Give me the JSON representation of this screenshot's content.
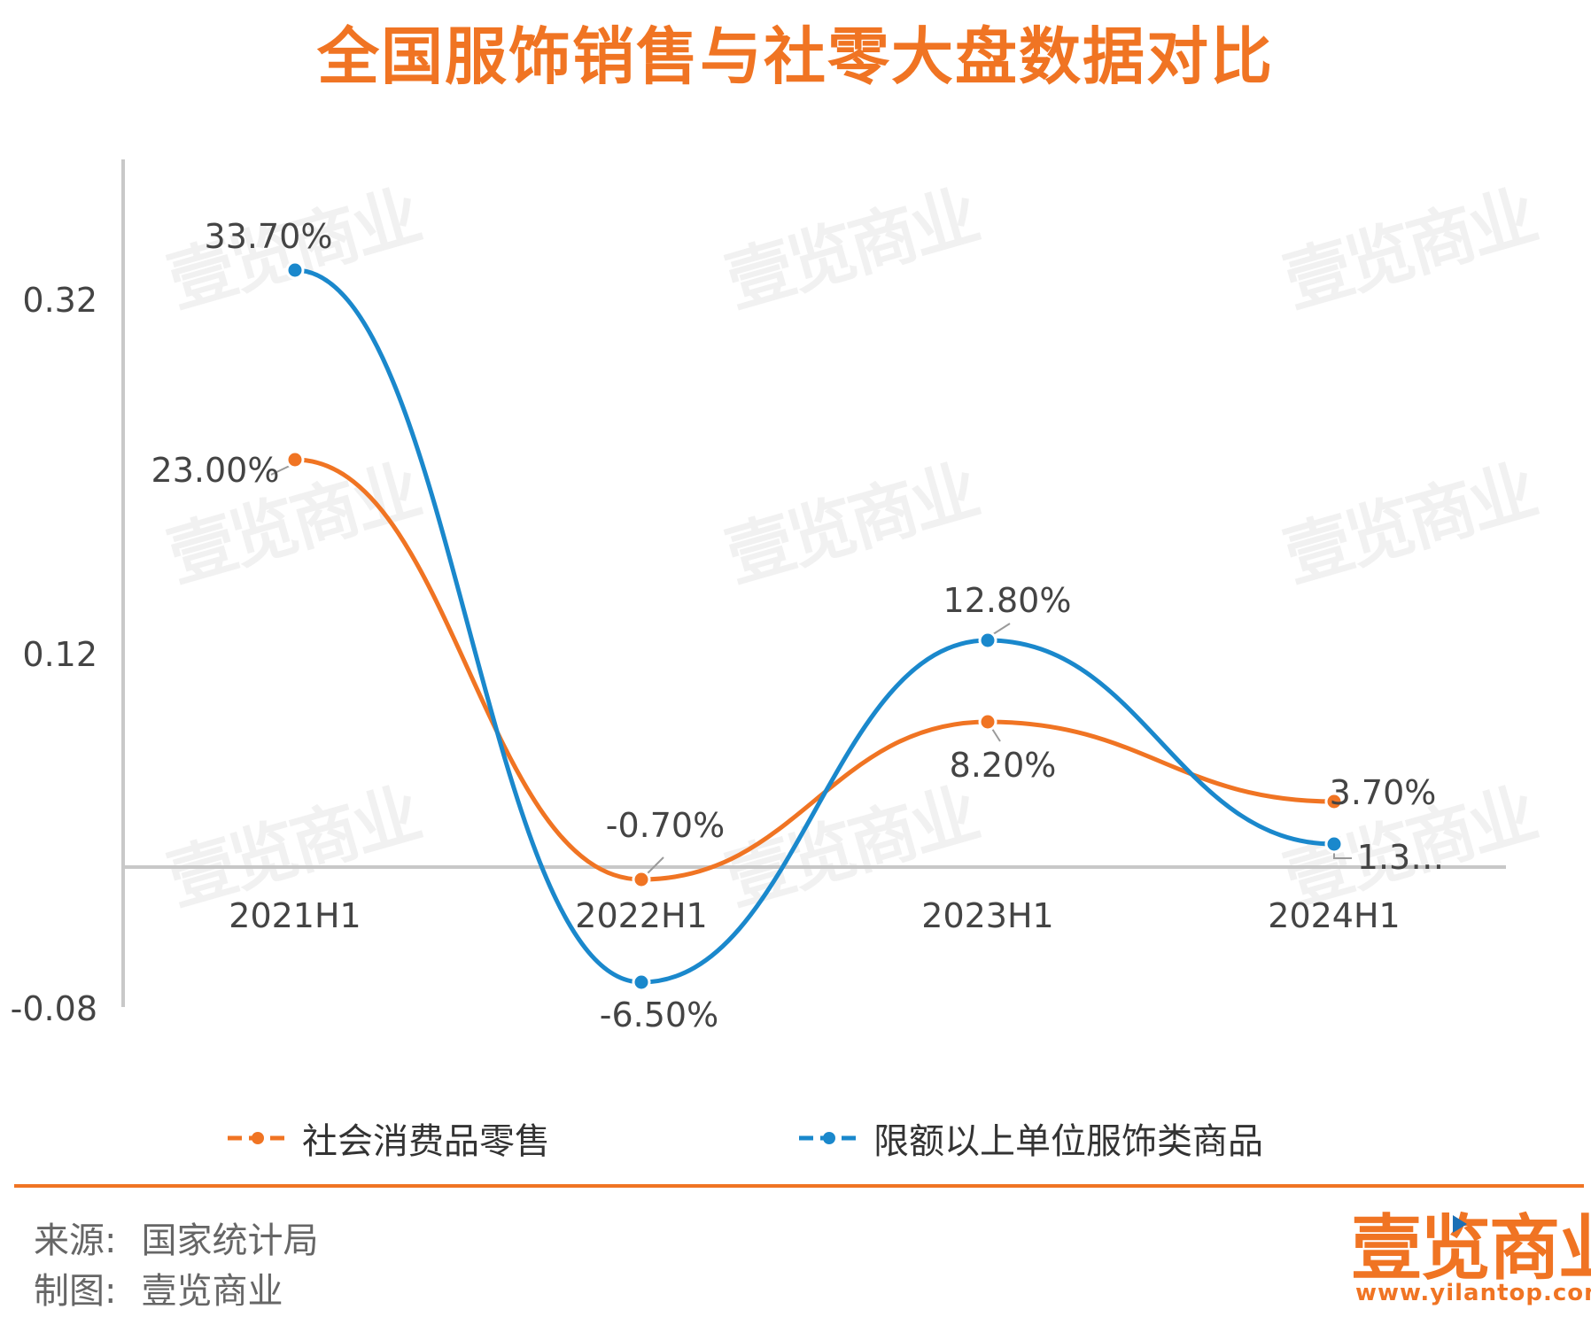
{
  "title": "全国服饰销售与社零大盘数据对比",
  "chart_data": {
    "type": "line",
    "categories": [
      "2021H1",
      "2022H1",
      "2023H1",
      "2024H1"
    ],
    "series": [
      {
        "name": "社会消费品零售",
        "color": "#f07423",
        "values": [
          0.23,
          -0.007,
          0.082,
          0.037
        ],
        "labels": [
          "23.00%",
          "-0.70%",
          "8.20%",
          "3.70%"
        ]
      },
      {
        "name": "限额以上单位服饰类商品",
        "color": "#1a88cc",
        "values": [
          0.337,
          -0.065,
          0.128,
          0.013
        ],
        "labels": [
          "33.70%",
          "-6.50%",
          "12.80%",
          "1.3…"
        ]
      }
    ],
    "y_ticks": [
      "0.32",
      "0.12",
      "-0.08"
    ],
    "y_tick_values": [
      0.32,
      0.12,
      -0.08
    ],
    "ylim": [
      -0.08,
      0.32
    ],
    "grid": false,
    "legend_position": "bottom"
  },
  "watermark_text": "壹览商业",
  "footer": {
    "source_label": "来源:",
    "source_value": "国家统计局",
    "maker_label": "制图:",
    "maker_value": "壹览商业"
  },
  "brand": {
    "name": "壹览商业",
    "url": "www.yilantop.com"
  }
}
